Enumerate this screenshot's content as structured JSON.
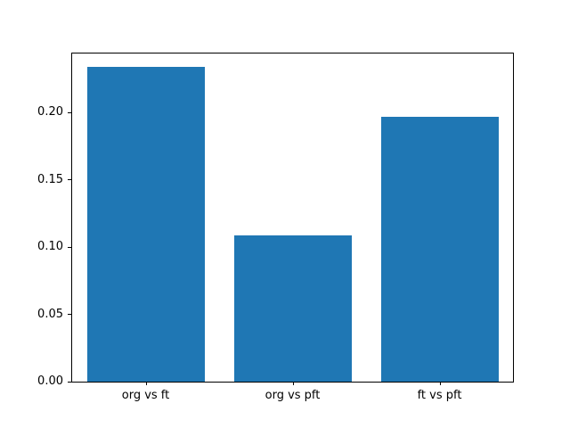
{
  "chart_data": {
    "type": "bar",
    "title": "",
    "xlabel": "",
    "ylabel": "",
    "categories": [
      "org vs ft",
      "org vs pft",
      "ft vs pft"
    ],
    "values": [
      0.234,
      0.109,
      0.197
    ],
    "ylim": [
      0,
      0.244
    ],
    "yticks": [
      0.0,
      0.05,
      0.1,
      0.15,
      0.2
    ],
    "ytick_labels": [
      "0.00",
      "0.05",
      "0.10",
      "0.15",
      "0.20"
    ],
    "bar_color": "#1f77b4",
    "bar_width_frac": 0.8,
    "grid": false,
    "legend_position": "none"
  },
  "colors": {
    "background": "#ffffff",
    "axis": "#000000",
    "text": "#000000"
  }
}
